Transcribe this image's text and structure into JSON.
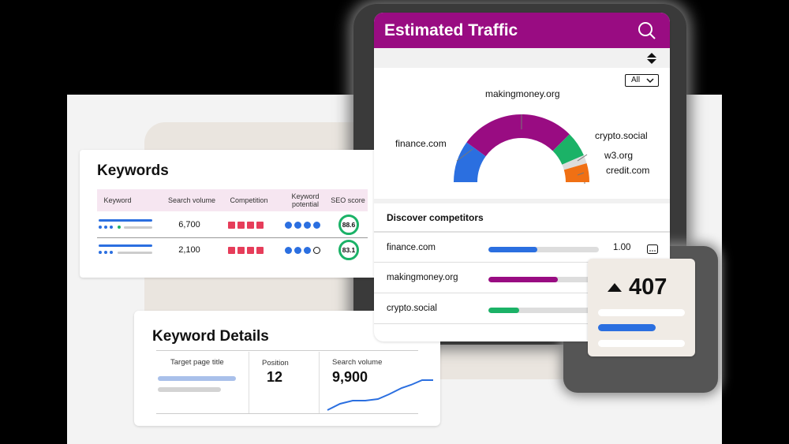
{
  "keywords": {
    "title": "Keywords",
    "headers": [
      "Keyword",
      "Search volume",
      "Competition",
      "Keyword potential",
      "SEO score"
    ],
    "rows": [
      {
        "volume": "6,700",
        "competition": 4,
        "potential": 4,
        "potential_max": 4,
        "score": "88.6"
      },
      {
        "volume": "2,100",
        "competition": 4,
        "potential": 3,
        "potential_max": 4,
        "score": "83.1"
      }
    ]
  },
  "keyword_details": {
    "title": "Keyword Details",
    "target_label": "Target page title",
    "position_label": "Position",
    "position_value": "12",
    "volume_label": "Search volume",
    "volume_value": "9,900"
  },
  "traffic": {
    "title": "Estimated Traffic",
    "filter": "All",
    "donut": [
      {
        "name": "finance.com",
        "value": 20,
        "color": "#2b6fe0"
      },
      {
        "name": "makingmoney.org",
        "value": 55,
        "color": "#990c82"
      },
      {
        "name": "crypto.social",
        "value": 12,
        "color": "#1bb267"
      },
      {
        "name": "w3.org",
        "value": 4,
        "color": "#dddddd"
      },
      {
        "name": "credit.com",
        "value": 9,
        "color": "#f07014"
      }
    ],
    "discover_title": "Discover competitors",
    "competitors": [
      {
        "name": "finance.com",
        "value": "1.00",
        "fill": 0.44,
        "color": "#2b6fe0"
      },
      {
        "name": "makingmoney.org",
        "value": "",
        "fill": 0.63,
        "color": "#990c82"
      },
      {
        "name": "crypto.social",
        "value": "",
        "fill": 0.28,
        "color": "#1bb267"
      }
    ]
  },
  "metric": {
    "value": "407",
    "direction": "up"
  },
  "icons": [
    "search-icon",
    "sort-icon",
    "chevron-down-icon",
    "more-icon",
    "arrow-up-icon"
  ]
}
